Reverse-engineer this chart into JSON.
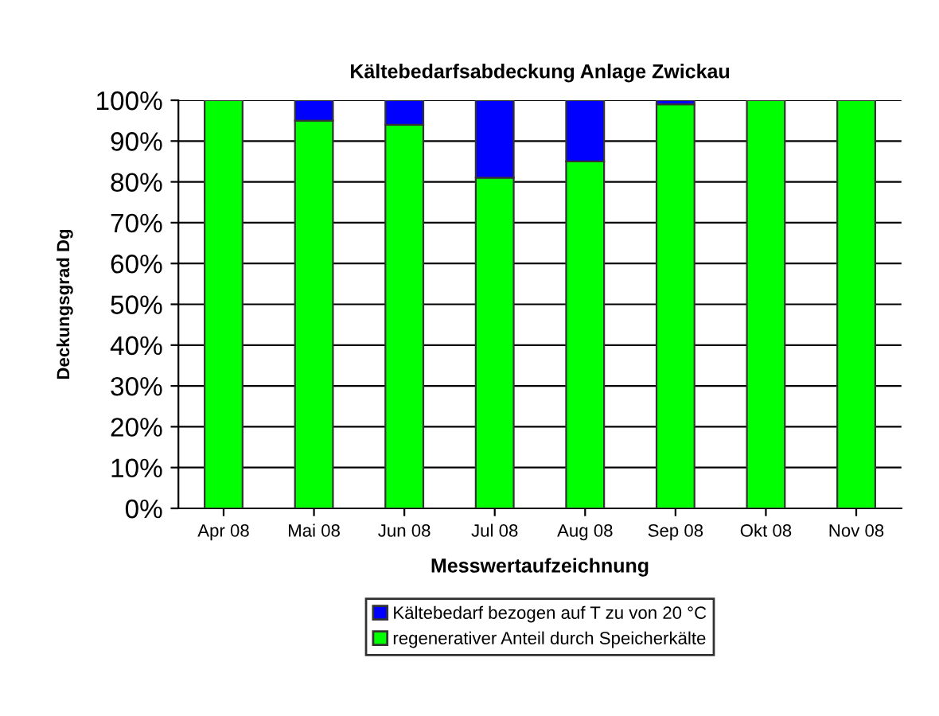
{
  "chart_data": {
    "type": "bar",
    "title": "Kältebedarfsabdeckung Anlage Zwickau",
    "xlabel": "Messwertaufzeichnung",
    "ylabel": "Deckungsgrad Dg",
    "categories": [
      "Apr 08",
      "Mai 08",
      "Jun 08",
      "Jul 08",
      "Aug 08",
      "Sep 08",
      "Okt 08",
      "Nov 08"
    ],
    "stacked": true,
    "series": [
      {
        "name": "regenerativer Anteil durch Speicherkälte",
        "color": "#00ff00",
        "values": [
          100,
          95,
          94,
          81,
          85,
          99,
          100,
          100
        ]
      },
      {
        "name": "Kältebedarf bezogen auf T zu von 20 °C",
        "color": "#0000ff",
        "values": [
          null,
          5,
          6,
          19,
          15,
          1,
          null,
          null
        ]
      }
    ],
    "ylim": [
      0,
      100
    ],
    "yticks": [
      {
        "value": 0,
        "label": "0%"
      },
      {
        "value": 10,
        "label": "10%"
      },
      {
        "value": 20,
        "label": "20%"
      },
      {
        "value": 30,
        "label": "30%"
      },
      {
        "value": 40,
        "label": "40%"
      },
      {
        "value": 50,
        "label": "50%"
      },
      {
        "value": 60,
        "label": "60%"
      },
      {
        "value": 70,
        "label": "70%"
      },
      {
        "value": 80,
        "label": "80%"
      },
      {
        "value": 90,
        "label": "90%"
      },
      {
        "value": 100,
        "label": "100%"
      }
    ],
    "grid": "y",
    "legend": "bottom"
  }
}
